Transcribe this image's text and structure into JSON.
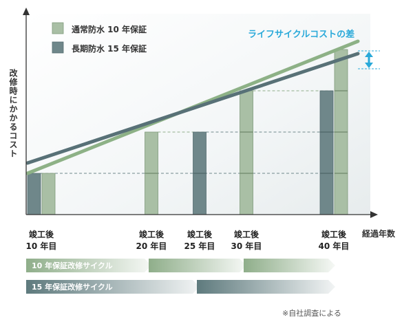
{
  "chart_data": {
    "type": "bar",
    "ylabel": "改修時にかかるコスト",
    "xlabel": "経過年数",
    "categories": [
      {
        "line1": "竣工後",
        "line2": "10 年目"
      },
      {
        "line1": "竣工後",
        "line2": "20 年目"
      },
      {
        "line1": "竣工後",
        "line2": "25 年目"
      },
      {
        "line1": "竣工後",
        "line2": "30 年目"
      },
      {
        "line1": "竣工後",
        "line2": "40 年目"
      }
    ],
    "series": [
      {
        "name": "通常防水 10 年保証",
        "color": "#a9bfa5",
        "bars": [
          {
            "year": 10,
            "segments": 1
          },
          {
            "year": 20,
            "segments": 2
          },
          {
            "year": 30,
            "segments": 3
          },
          {
            "year": 40,
            "segments": 4
          }
        ]
      },
      {
        "name": "長期防水 15 年保証",
        "color": "#6f878a",
        "bars": [
          {
            "year": 10,
            "segments": 1
          },
          {
            "year": 25,
            "segments": 2
          },
          {
            "year": 40,
            "segments": 3
          }
        ]
      }
    ],
    "trend_lines": [
      {
        "series": "通常防水 10 年保証",
        "color": "#8db186",
        "from": [
          10,
          1
        ],
        "to": [
          40,
          4.2
        ]
      },
      {
        "series": "長期防水 15 年保証",
        "color": "#587177",
        "from": [
          10,
          1.25
        ],
        "to": [
          40,
          3.9
        ]
      }
    ],
    "annotation": {
      "text": "ライフサイクルコストの差",
      "color": "#29a9d9"
    },
    "cycles": [
      {
        "label": "10 年保証改修サイクル",
        "color": "#8fae8a",
        "arrows_at": [
          20,
          30,
          40
        ]
      },
      {
        "label": "15 年保証改修サイクル",
        "color": "#5e7a7d",
        "arrows_at": [
          25,
          40
        ]
      }
    ],
    "note": "※自社調査による",
    "grid": false,
    "legend": "top-left"
  }
}
